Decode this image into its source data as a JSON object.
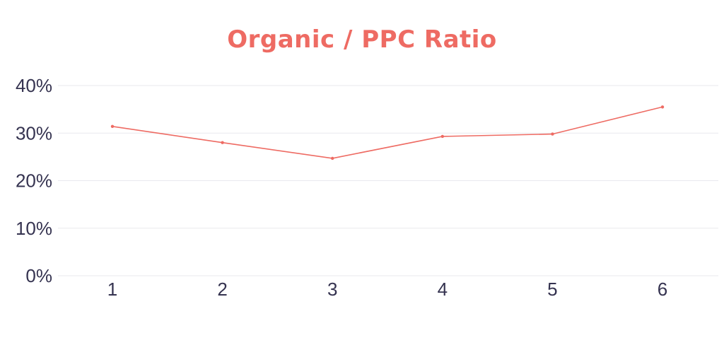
{
  "chart_data": {
    "type": "line",
    "title": "Organic / PPC Ratio",
    "xlabel": "",
    "ylabel": "",
    "categories": [
      "1",
      "2",
      "3",
      "4",
      "5",
      "6"
    ],
    "series": [
      {
        "values": [
          31.4,
          28.0,
          24.7,
          29.3,
          29.8,
          35.5
        ]
      }
    ],
    "yticks": [
      "0%",
      "10%",
      "20%",
      "30%",
      "40%"
    ],
    "ylim": [
      0,
      40
    ],
    "grid": true,
    "legend": "none",
    "colors": {
      "title": "#ee6b63",
      "series": "#ee6b63",
      "ticks": "#353350",
      "grid": "#e9e9ee"
    }
  }
}
